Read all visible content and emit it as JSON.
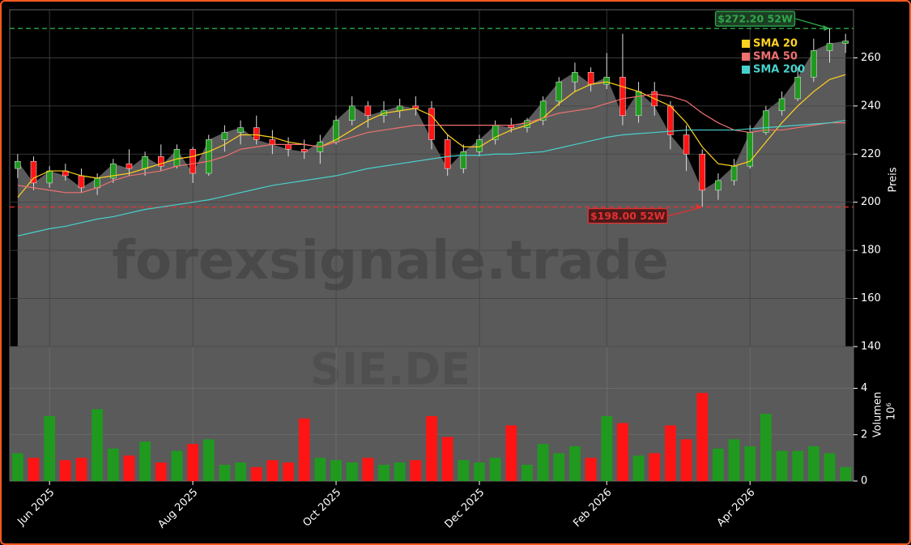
{
  "chart_data": {
    "type": "candlestick",
    "watermark": "forexsignale.trade",
    "symbol": "SIE.DE",
    "categories": [
      null,
      null,
      "Jun 2025",
      null,
      null,
      null,
      null,
      null,
      null,
      null,
      null,
      "Aug 2025",
      null,
      null,
      null,
      null,
      null,
      null,
      null,
      null,
      "Oct 2025",
      null,
      null,
      null,
      null,
      null,
      null,
      null,
      null,
      "Dec 2025",
      null,
      null,
      null,
      null,
      null,
      null,
      null,
      "Feb 2026",
      null,
      null,
      null,
      null,
      null,
      null,
      null,
      null,
      "Apr 2026",
      null,
      null,
      null,
      null,
      null,
      null
    ],
    "open": [
      214,
      217,
      208,
      213,
      211,
      206,
      210,
      216,
      214,
      219,
      215,
      222,
      212,
      226,
      229,
      231,
      226,
      224,
      222,
      221,
      225,
      234,
      240,
      236,
      238,
      240,
      239,
      226,
      214,
      221,
      226,
      232,
      231,
      234,
      242,
      250,
      254,
      249,
      252,
      236,
      246,
      240,
      228,
      220,
      205,
      209,
      215,
      229,
      238,
      243,
      252,
      263,
      266
    ],
    "high": [
      220,
      219,
      215,
      216,
      214,
      212,
      218,
      222,
      221,
      224,
      224,
      223,
      228,
      232,
      234,
      236,
      230,
      227,
      226,
      228,
      236,
      244,
      242,
      242,
      243,
      244,
      242,
      228,
      224,
      228,
      234,
      235,
      235,
      244,
      252,
      258,
      256,
      262,
      270,
      250,
      250,
      242,
      232,
      222,
      212,
      218,
      232,
      240,
      246,
      256,
      268,
      272.2,
      270
    ],
    "low": [
      210,
      205,
      206,
      209,
      204,
      203,
      208,
      211,
      211,
      213,
      214,
      208,
      211,
      221,
      224,
      224,
      220,
      219,
      218,
      216,
      224,
      232,
      231,
      233,
      235,
      236,
      222,
      211,
      212,
      219,
      224,
      229,
      229,
      232,
      240,
      246,
      246,
      247,
      232,
      233,
      236,
      222,
      213,
      198,
      201,
      207,
      214,
      228,
      236,
      242,
      250,
      258,
      262
    ],
    "close": [
      217,
      208,
      213,
      211,
      206,
      210,
      216,
      214,
      219,
      215,
      222,
      212,
      226,
      229,
      231,
      226,
      224,
      222,
      221,
      225,
      234,
      240,
      236,
      238,
      240,
      239,
      226,
      214,
      221,
      226,
      232,
      231,
      234,
      242,
      250,
      254,
      249,
      252,
      236,
      246,
      240,
      228,
      220,
      205,
      209,
      215,
      229,
      238,
      243,
      252,
      263,
      266,
      267
    ],
    "up_color": "#1f9a1f",
    "down_color": "#ff1414",
    "area_color": "#5a5a5a",
    "series": [
      {
        "name": "SMA 20",
        "color": "#ffd21f",
        "values": [
          202,
          210,
          213,
          213,
          211,
          210,
          211,
          212,
          214,
          216,
          218,
          219,
          221,
          224,
          228,
          228,
          227,
          225,
          224,
          223,
          226,
          230,
          234,
          237,
          238,
          239,
          236,
          228,
          223,
          223,
          227,
          230,
          232,
          235,
          241,
          246,
          249,
          250,
          248,
          246,
          243,
          240,
          233,
          223,
          216,
          215,
          217,
          225,
          233,
          240,
          246,
          251,
          253
        ]
      },
      {
        "name": "SMA 50",
        "color": "#f07070",
        "values": [
          207,
          206,
          205,
          204,
          204,
          206,
          209,
          211,
          212,
          213,
          215,
          216,
          217,
          219,
          222,
          223,
          224,
          224,
          224,
          223,
          225,
          227,
          229,
          230,
          231,
          232,
          232,
          232,
          232,
          232,
          232,
          232,
          233,
          235,
          237,
          238,
          239,
          241,
          243,
          244,
          245,
          244,
          242,
          237,
          233,
          230,
          229,
          230,
          230,
          231,
          232,
          233,
          233
        ]
      },
      {
        "name": "SMA 200",
        "color": "#48d1cc",
        "values": [
          186,
          187.5,
          189,
          190,
          191.5,
          193,
          194,
          195.5,
          197,
          198,
          199,
          200,
          201,
          202.5,
          204,
          205.5,
          207,
          208,
          209,
          210,
          211,
          212.5,
          214,
          215,
          216,
          217,
          218,
          219,
          219.5,
          219.5,
          220,
          220,
          220.5,
          221,
          222.5,
          224,
          225.5,
          227,
          228,
          228.5,
          229,
          229.5,
          230,
          230,
          230,
          230,
          230.5,
          231,
          231.5,
          232,
          232.5,
          233,
          234
        ]
      }
    ],
    "legend": "upper right",
    "ylim": [
      140,
      280
    ],
    "yticks": [
      140,
      160,
      180,
      200,
      220,
      240,
      260
    ],
    "ylabel": "Preis",
    "grid": true,
    "hlines": [
      {
        "value": 272.2,
        "label": "$272.20 52W",
        "color": "#2ea84a"
      },
      {
        "value": 198,
        "label": "$198.00 52W",
        "color": "#e63030"
      }
    ],
    "volume": {
      "values": [
        1.2,
        1,
        2.8,
        0.9,
        1,
        3.1,
        1.4,
        1.1,
        1.7,
        0.8,
        1.3,
        1.6,
        1.8,
        0.7,
        0.8,
        0.6,
        0.9,
        0.8,
        2.7,
        1,
        0.9,
        0.8,
        1,
        0.7,
        0.8,
        0.9,
        2.8,
        1.9,
        0.9,
        0.8,
        1,
        2.4,
        0.7,
        1.6,
        1.2,
        1.5,
        1,
        2.8,
        2.5,
        1.1,
        1.2,
        2.4,
        1.8,
        3.8,
        1.4,
        1.8,
        1.5,
        2.9,
        1.3,
        1.3,
        1.5,
        1.2,
        0.6
      ],
      "ylim": [
        0,
        5.8
      ],
      "yticks": [
        0,
        2,
        4
      ],
      "ylabel": "Volumen",
      "scale_label": "10⁶"
    }
  }
}
